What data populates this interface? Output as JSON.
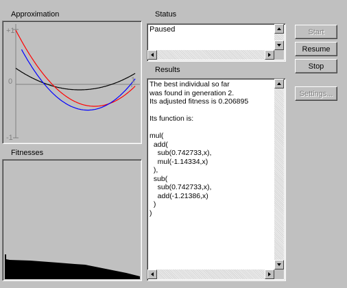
{
  "approximation": {
    "title": "Approximation",
    "y_top_label": "+1",
    "y_zero_label": "0",
    "y_bottom_label": "-1",
    "x_right_label": "1",
    "colors": {
      "grid": "#808080",
      "target": "#ff0000",
      "best": "#0000ff",
      "other": "#000000"
    }
  },
  "fitnesses": {
    "title": "Fitnesses",
    "fill_color": "#000000"
  },
  "status": {
    "title": "Status",
    "text": "Paused"
  },
  "results": {
    "title": "Results",
    "lines": [
      "The best individual so far",
      "was found in generation 2.",
      "Its adjusted fitness is 0.206895",
      "",
      "Its function is:",
      "",
      "mul(",
      "  add(",
      "    sub(0.742733,x),",
      "    mul(-1.14334,x)",
      "  ),",
      "  sub(",
      "    sub(0.742733,x),",
      "    add(-1.21386,x)",
      "  )",
      ")"
    ]
  },
  "buttons": {
    "start": "Start",
    "resume": "Resume",
    "stop": "Stop",
    "settings": "Settings..."
  }
}
